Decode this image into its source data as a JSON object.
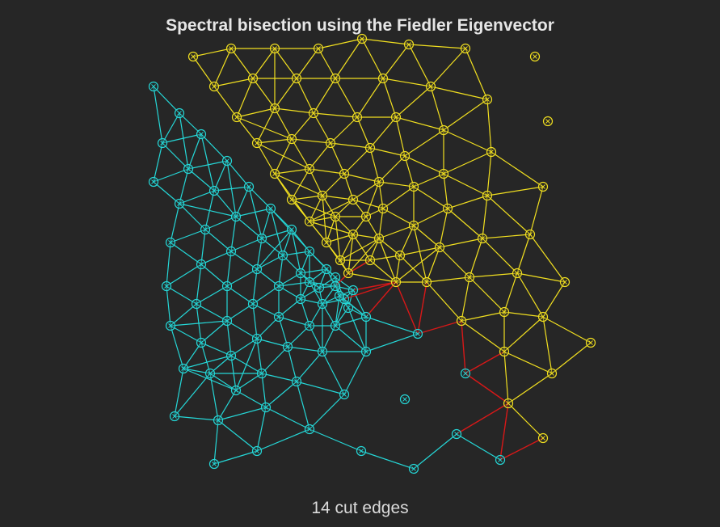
{
  "title": "Spectral bisection using the Fiedler Eigenvector",
  "footer": "14 cut edges",
  "colors": {
    "background": "#262626",
    "partition_a": "#f2e020",
    "partition_b": "#25d8d8",
    "cut_edge": "#d81818"
  }
}
